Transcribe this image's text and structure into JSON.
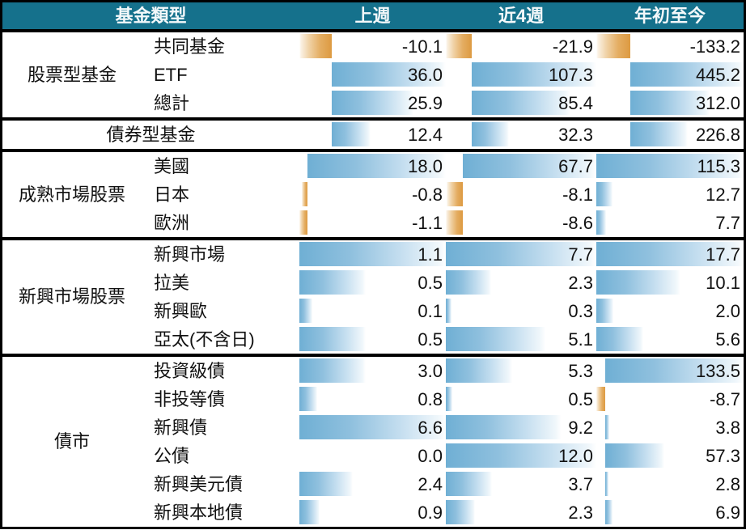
{
  "colors": {
    "header_bg": "#15718c",
    "header_text": "#f3f8fa",
    "positive_bar": "#6fafd4",
    "negative_bar": "#dd9a41",
    "border": "#000000",
    "body_text": "#111111"
  },
  "chart_data": {
    "type": "table",
    "title": "基金類型",
    "columns": [
      "上週",
      "近4週",
      "年初至今"
    ],
    "legend": "正值為藍色資料條，負值為橘色資料條",
    "groups": [
      {
        "label": "股票型基金",
        "bar_scale": [
          [
            -10.1,
            36.0
          ],
          [
            -21.9,
            107.3
          ],
          [
            -133.2,
            445.2
          ]
        ],
        "rows": [
          {
            "label": "共同基金",
            "values": [
              -10.1,
              -21.9,
              -133.2
            ]
          },
          {
            "label": "ETF",
            "values": [
              36.0,
              107.3,
              445.2
            ]
          },
          {
            "label": "總計",
            "values": [
              25.9,
              85.4,
              312.0
            ]
          }
        ]
      },
      {
        "label": "債券型基金",
        "merged": true,
        "bar_scale": [
          [
            -10.1,
            36.0
          ],
          [
            -21.9,
            107.3
          ],
          [
            -133.2,
            445.2
          ]
        ],
        "rows": [
          {
            "label": "債券型基金",
            "values": [
              12.4,
              32.3,
              226.8
            ]
          }
        ]
      },
      {
        "label": "成熟市場股票",
        "bar_scale": [
          [
            -1.1,
            18.0
          ],
          [
            -8.6,
            67.7
          ],
          [
            0,
            115.3
          ]
        ],
        "rows": [
          {
            "label": "美國",
            "values": [
              18.0,
              67.7,
              115.3
            ]
          },
          {
            "label": "日本",
            "values": [
              -0.8,
              -8.1,
              12.7
            ]
          },
          {
            "label": "歐洲",
            "values": [
              -1.1,
              -8.6,
              7.7
            ]
          }
        ]
      },
      {
        "label": "新興市場股票",
        "bar_scale": [
          [
            0,
            1.1
          ],
          [
            0,
            7.7
          ],
          [
            0,
            17.7
          ]
        ],
        "rows": [
          {
            "label": "新興市場",
            "values": [
              1.1,
              7.7,
              17.7
            ]
          },
          {
            "label": "拉美",
            "values": [
              0.5,
              2.3,
              10.1
            ]
          },
          {
            "label": "新興歐",
            "values": [
              0.1,
              0.3,
              2.0
            ]
          },
          {
            "label": "亞太(不含日)",
            "values": [
              0.5,
              5.1,
              5.6
            ]
          }
        ]
      },
      {
        "label": "債市",
        "bar_scale": [
          [
            0,
            6.6
          ],
          [
            0,
            12.0
          ],
          [
            -8.7,
            133.5
          ]
        ],
        "rows": [
          {
            "label": "投資級債",
            "values": [
              3.0,
              5.3,
              133.5
            ]
          },
          {
            "label": "非投等債",
            "values": [
              0.8,
              0.5,
              -8.7
            ]
          },
          {
            "label": "新興債",
            "values": [
              6.6,
              9.2,
              3.8
            ]
          },
          {
            "label": "公債",
            "values": [
              0.0,
              12.0,
              57.3
            ]
          },
          {
            "label": "新興美元債",
            "values": [
              2.4,
              3.7,
              2.8
            ]
          },
          {
            "label": "新興本地債",
            "values": [
              0.9,
              2.3,
              6.9
            ]
          }
        ]
      }
    ]
  }
}
